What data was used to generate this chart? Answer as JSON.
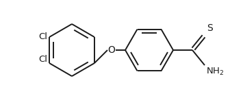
{
  "background": "#ffffff",
  "line_color": "#1a1a1a",
  "line_width": 1.4,
  "font_size": 9.5,
  "figsize": [
    3.36,
    1.53
  ],
  "dpi": 100,
  "xlim": [
    0,
    336
  ],
  "ylim": [
    0,
    153
  ]
}
